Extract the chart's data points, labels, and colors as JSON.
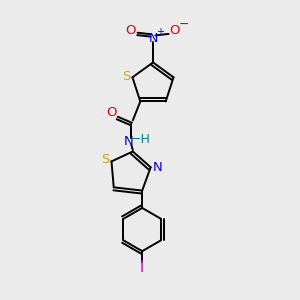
{
  "bg_color": "#ebebeb",
  "bond_color": "#000000",
  "atom_colors": {
    "S": "#ccaa00",
    "N": "#0000ee",
    "O": "#ee0000",
    "H": "#008888",
    "I": "#cc00cc"
  },
  "lw": 1.4,
  "fs": 9.5
}
